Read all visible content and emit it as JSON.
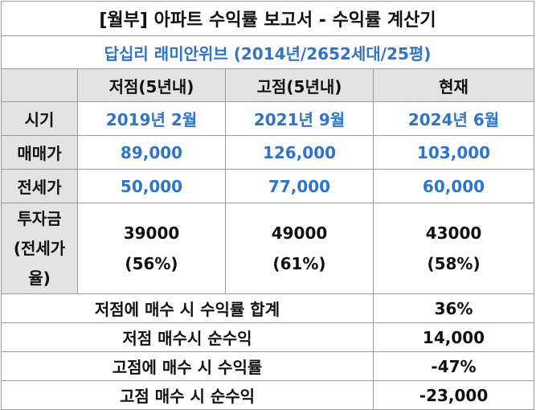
{
  "title": "[월부] 아파트 수익률 보고서 - 수익률 계산기",
  "subtitle": "답십리 래미안위브 (2014년/2652세대/25평)",
  "columns": {
    "low": "저점(5년내)",
    "high": "고점(5년내)",
    "current": "현재"
  },
  "rows": {
    "period": {
      "label": "시기",
      "low": "2019년 2월",
      "high": "2021년 9월",
      "current": "2024년 6월"
    },
    "sale_price": {
      "label": "매매가",
      "low": "89,000",
      "high": "126,000",
      "current": "103,000"
    },
    "jeonse_price": {
      "label": "전세가",
      "low": "50,000",
      "high": "77,000",
      "current": "60,000"
    },
    "investment": {
      "label_lines": [
        "투자금",
        "(전세가",
        "율)"
      ],
      "low": {
        "amount": "39000",
        "ratio": "(56%)"
      },
      "high": {
        "amount": "49000",
        "ratio": "(61%)"
      },
      "current": {
        "amount": "43000",
        "ratio": "(58%)"
      }
    }
  },
  "summary": [
    {
      "label": "저점에 매수 시 수익률 합계",
      "value": "36%"
    },
    {
      "label": "저점 매수시 순수익",
      "value": "14,000"
    },
    {
      "label": "고점에 매수 시 수익률",
      "value": "-47%"
    },
    {
      "label": "고점 매수 시 순수익",
      "value": "-23,000"
    }
  ]
}
